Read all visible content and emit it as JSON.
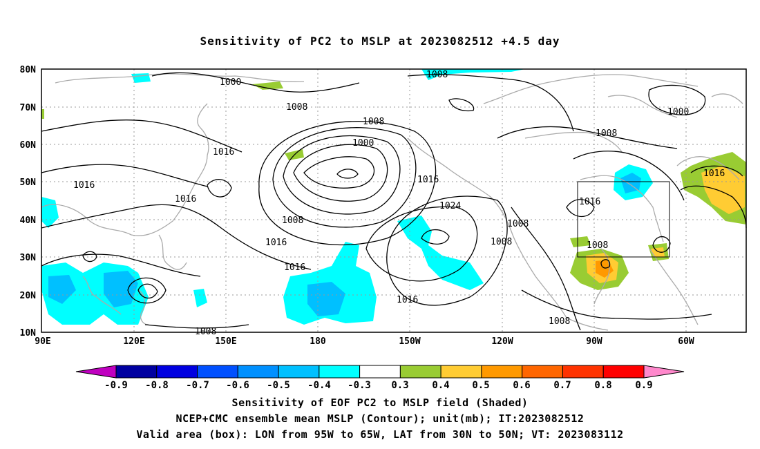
{
  "title": "Sensitivity of PC2 to MSLP at 2023082512 +4.5 day",
  "map": {
    "lat_labels": [
      "80N",
      "70N",
      "60N",
      "50N",
      "40N",
      "30N",
      "20N",
      "10N"
    ],
    "lon_labels": [
      "90E",
      "120E",
      "150E",
      "180",
      "150W",
      "120W",
      "90W",
      "60W"
    ],
    "contour_labels": [
      {
        "text": "1000"
      },
      {
        "text": "1008"
      },
      {
        "text": "1008"
      },
      {
        "text": "1000"
      },
      {
        "text": "1008"
      },
      {
        "text": "1016"
      },
      {
        "text": "1016"
      },
      {
        "text": "1000"
      },
      {
        "text": "1016"
      },
      {
        "text": "1024"
      },
      {
        "text": "1008"
      },
      {
        "text": "1016"
      },
      {
        "text": "1016"
      },
      {
        "text": "1016"
      },
      {
        "text": "1008"
      },
      {
        "text": "1008"
      },
      {
        "text": "1016"
      },
      {
        "text": "1008"
      },
      {
        "text": "1008"
      },
      {
        "text": "1016"
      },
      {
        "text": "1008"
      },
      {
        "text": "1008"
      }
    ],
    "valid_box": {
      "lon_from": "95W",
      "lon_to": "65W",
      "lat_from": "30N",
      "lat_to": "50N"
    }
  },
  "colorbar": {
    "labels": [
      "-0.9",
      "-0.8",
      "-0.7",
      "-0.6",
      "-0.5",
      "-0.4",
      "-0.3",
      "0.3",
      "0.4",
      "0.5",
      "0.6",
      "0.7",
      "0.8",
      "0.9"
    ],
    "colors": [
      "#c000c0",
      "#0000a0",
      "#0000e0",
      "#0050ff",
      "#0090ff",
      "#00c0ff",
      "#00ffff",
      "#ffffff",
      "#99cc33",
      "#ffcc33",
      "#ff9900",
      "#ff6600",
      "#ff3300",
      "#ff0000",
      "#ff88cc"
    ]
  },
  "captions": [
    "Sensitivity of EOF PC2 to MSLP field (Shaded)",
    "NCEP+CMC ensemble mean MSLP (Contour); unit(mb); IT:2023082512",
    "Valid area (box): LON from 95W to 65W, LAT from 30N to 50N; VT: 2023083112"
  ]
}
